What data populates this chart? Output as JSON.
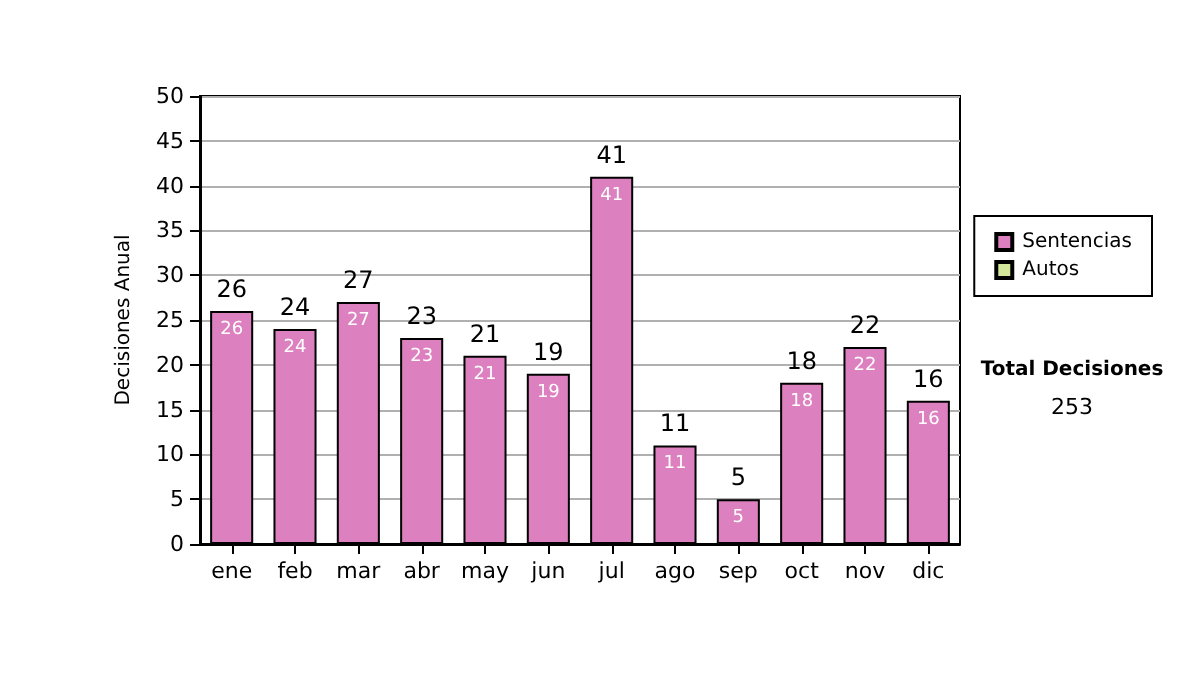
{
  "chart_data": {
    "type": "bar",
    "ylabel": "Decisiones Anual",
    "categories": [
      "ene",
      "feb",
      "mar",
      "abr",
      "may",
      "jun",
      "jul",
      "ago",
      "sep",
      "oct",
      "nov",
      "dic"
    ],
    "series": [
      {
        "name": "Sentencias",
        "color": "#dc80c0",
        "values": [
          26,
          24,
          27,
          23,
          21,
          19,
          41,
          11,
          5,
          18,
          22,
          16
        ],
        "value_labels": [
          "26",
          "24",
          "27",
          "23",
          "21",
          "19",
          "41",
          "11",
          "5",
          "18",
          "22",
          "16"
        ]
      },
      {
        "name": "Autos",
        "color": "#d4e89c",
        "values": [
          0,
          0,
          0,
          0,
          0,
          0,
          0,
          0,
          0,
          0,
          0,
          0
        ]
      }
    ],
    "stacked": true,
    "totals": [
      "26",
      "24",
      "27",
      "23",
      "21",
      "19",
      "41",
      "11",
      "5",
      "18",
      "22",
      "16"
    ],
    "ylim": [
      0,
      50
    ],
    "yticks": [
      0,
      5,
      10,
      15,
      20,
      25,
      30,
      35,
      40,
      45,
      50
    ],
    "grid": "y",
    "legend": "right",
    "annotations": [
      "Total Decisiones",
      "253"
    ]
  }
}
